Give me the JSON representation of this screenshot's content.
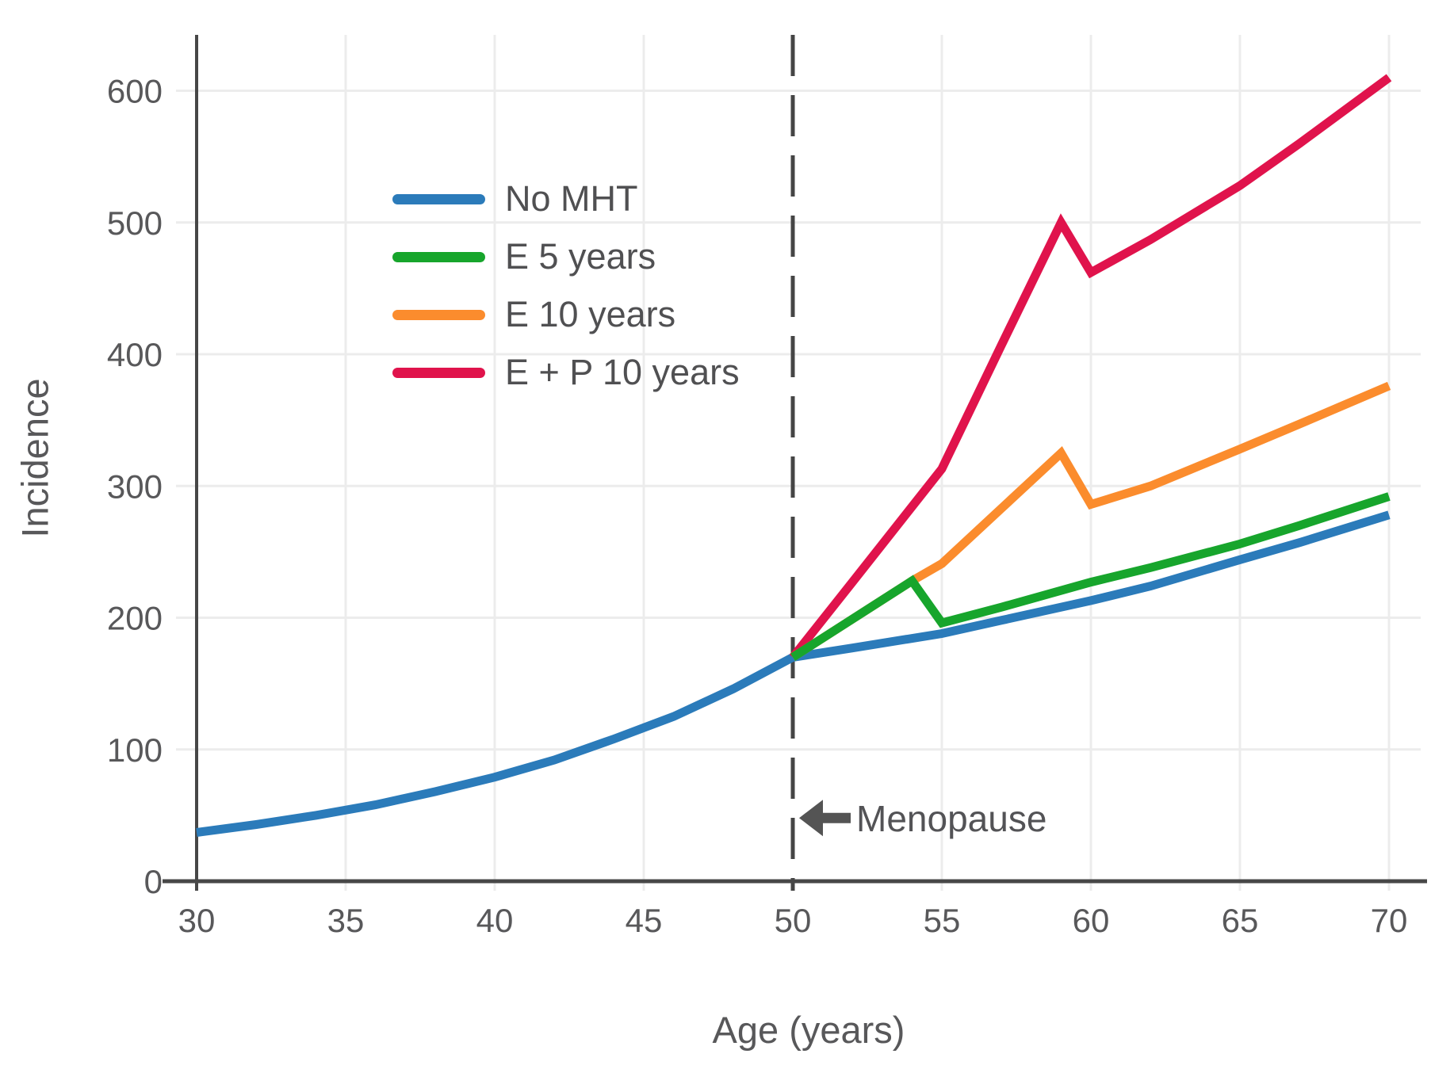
{
  "figure": {
    "background": "#ffffff",
    "text_color": "#58585a",
    "grid_color": "#ececec",
    "spine_color": "#474747",
    "dashed_line_color": "#454545",
    "annotation_color": "#545454"
  },
  "chart_data": {
    "type": "line",
    "title": "",
    "xlabel": "Age (years)",
    "ylabel": "Incidence",
    "x_ticks": [
      30,
      35,
      40,
      45,
      50,
      55,
      60,
      65,
      70
    ],
    "y_ticks": [
      0,
      100,
      200,
      300,
      400,
      500,
      600
    ],
    "xlim": [
      30,
      70
    ],
    "ylim": [
      0,
      660
    ],
    "grid": true,
    "legend_position": "upper-left-inside",
    "menopause_line_x": 50,
    "annotation": {
      "text": "Menopause",
      "x": 50,
      "y": 48
    },
    "series": [
      {
        "name": "No MHT",
        "color": "#2B7BBA",
        "points": [
          [
            30,
            37
          ],
          [
            32,
            43
          ],
          [
            34,
            50
          ],
          [
            36,
            58
          ],
          [
            38,
            68
          ],
          [
            40,
            79
          ],
          [
            42,
            92
          ],
          [
            44,
            108
          ],
          [
            46,
            125
          ],
          [
            48,
            146
          ],
          [
            50,
            170
          ],
          [
            52,
            177
          ],
          [
            55,
            188
          ],
          [
            57,
            198
          ],
          [
            60,
            213
          ],
          [
            62,
            224
          ],
          [
            65,
            244
          ],
          [
            67,
            257
          ],
          [
            70,
            278
          ]
        ]
      },
      {
        "name": "E 5 years",
        "color": "#17A52C",
        "points": [
          [
            50,
            170
          ],
          [
            54,
            228
          ],
          [
            55,
            196
          ],
          [
            57,
            208
          ],
          [
            60,
            227
          ],
          [
            62,
            238
          ],
          [
            65,
            256
          ],
          [
            67,
            270
          ],
          [
            70,
            292
          ]
        ]
      },
      {
        "name": "E 10 years",
        "color": "#FB8C2D",
        "points": [
          [
            50,
            170
          ],
          [
            54,
            228
          ],
          [
            55,
            241
          ],
          [
            59,
            325
          ],
          [
            60,
            286
          ],
          [
            62,
            300
          ],
          [
            65,
            328
          ],
          [
            67,
            347
          ],
          [
            70,
            376
          ]
        ]
      },
      {
        "name": "E + P 10 years",
        "color": "#E0134C",
        "points": [
          [
            50,
            170
          ],
          [
            52,
            227
          ],
          [
            55,
            313
          ],
          [
            57,
            407
          ],
          [
            59,
            500
          ],
          [
            60,
            462
          ],
          [
            62,
            487
          ],
          [
            65,
            528
          ],
          [
            67,
            560
          ],
          [
            70,
            610
          ]
        ]
      }
    ]
  }
}
